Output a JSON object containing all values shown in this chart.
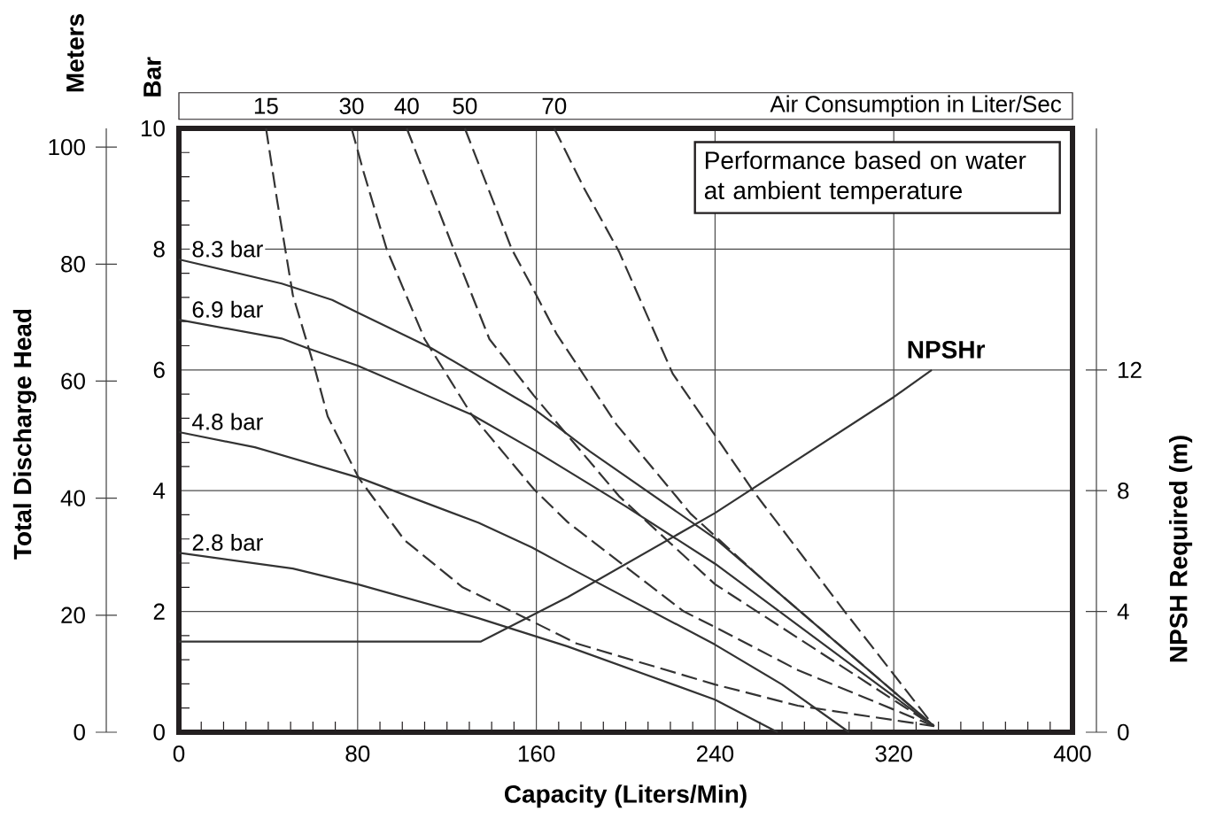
{
  "chart_data": {
    "type": "line",
    "xlabel": "Capacity (Liters/Min)",
    "ylabel": "Bar",
    "y2label": "Meters",
    "y3label": "NPSH Required (m)",
    "annotations": [
      "Total Discharge Head",
      "Air Consumption in Liter/Sec",
      "Performance based on water at ambient temperature"
    ],
    "xlim": [
      0,
      400
    ],
    "xticks": [
      0,
      80,
      160,
      240,
      320,
      400
    ],
    "ylim": [
      0,
      10
    ],
    "yticks": [
      0,
      2,
      4,
      6,
      8,
      10
    ],
    "y2lim": [
      0,
      103.2
    ],
    "y2ticks": [
      0,
      20,
      40,
      60,
      80,
      100
    ],
    "y3lim": [
      0,
      20
    ],
    "y3ticks": [
      0,
      4,
      8,
      12
    ],
    "grid": true,
    "series": [
      {
        "name": "8.3 bar",
        "color": "#333333",
        "line_style": "solid",
        "x": [
          0,
          46,
          68.6,
          80,
          113,
          158,
          167,
          184,
          240,
          338
        ],
        "values": [
          7.83,
          7.43,
          7.16,
          6.95,
          6.36,
          5.38,
          5.13,
          4.65,
          3.21,
          0.1
        ]
      },
      {
        "name": "6.9 bar",
        "color": "#333333",
        "line_style": "solid",
        "x": [
          0,
          46,
          57.5,
          80,
          131,
          158,
          200,
          240,
          338
        ],
        "values": [
          6.83,
          6.52,
          6.36,
          6.07,
          5.26,
          4.69,
          3.74,
          2.79,
          0.1
        ]
      },
      {
        "name": "4.8 bar",
        "color": "#333333",
        "line_style": "solid",
        "x": [
          0,
          34,
          81,
          134,
          158,
          174,
          240,
          270,
          300
        ],
        "values": [
          4.97,
          4.72,
          4.21,
          3.47,
          3.06,
          2.74,
          1.45,
          0.79,
          0
        ]
      },
      {
        "name": "2.8 bar",
        "color": "#333333",
        "line_style": "solid",
        "x": [
          0,
          51,
          80,
          134,
          174,
          240,
          268
        ],
        "values": [
          2.97,
          2.71,
          2.45,
          1.89,
          1.42,
          0.54,
          0
        ]
      },
      {
        "name": "15",
        "color": "#333333",
        "line_style": "dashed",
        "x": [
          39,
          44,
          47.6,
          51,
          61,
          66.6,
          80.5,
          101,
          127,
          159,
          178,
          240,
          277,
          338
        ],
        "values": [
          10,
          8.8,
          8,
          7.24,
          6,
          5.23,
          4.21,
          3.18,
          2.4,
          1.82,
          1.47,
          0.79,
          0.44,
          0.1
        ]
      },
      {
        "name": "30",
        "color": "#333333",
        "line_style": "dashed",
        "x": [
          77.3,
          82.5,
          93,
          110,
          131,
          159,
          174,
          226,
          240,
          277,
          338
        ],
        "values": [
          10,
          9.3,
          8,
          6.51,
          5.26,
          4.02,
          3.48,
          2,
          1.74,
          1.03,
          0.1
        ]
      },
      {
        "name": "40",
        "color": "#333333",
        "line_style": "dashed",
        "x": [
          102,
          123,
          139,
          159,
          197,
          240,
          338
        ],
        "values": [
          10,
          8,
          6.51,
          5.57,
          3.91,
          2.45,
          0.1
        ]
      },
      {
        "name": "50",
        "color": "#333333",
        "line_style": "dashed",
        "x": [
          128,
          149,
          158,
          169,
          196,
          229,
          258,
          338
        ],
        "values": [
          10,
          8,
          7.38,
          6.6,
          5.09,
          3.62,
          2.64,
          0.1
        ]
      },
      {
        "name": "70",
        "color": "#333333",
        "line_style": "dashed",
        "x": [
          168,
          181.5,
          197,
          221,
          257,
          298,
          338
        ],
        "values": [
          10,
          9,
          7.96,
          5.94,
          4,
          2,
          0.1
        ]
      },
      {
        "name": "NPSHr",
        "color": "#333333",
        "line_style": "solid",
        "axis": "y3",
        "x": [
          0,
          135,
          174,
          240,
          320,
          337
        ],
        "values": [
          3,
          3,
          4.47,
          7.26,
          11.1,
          12
        ]
      }
    ]
  }
}
